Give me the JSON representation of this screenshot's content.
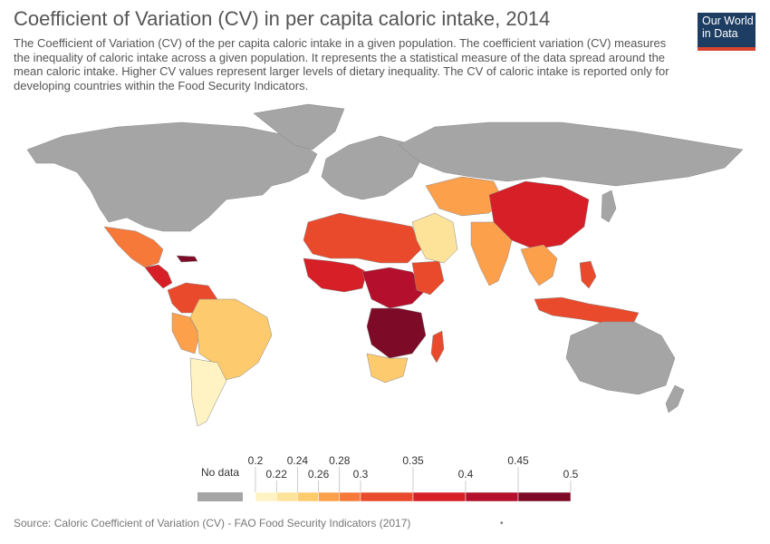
{
  "header": {
    "title": "Coefficient of Variation (CV) in per capita caloric intake, 2014",
    "subtitle": "The Coefficient of Variation (CV) of the per capita caloric intake in a given population. The coefficient variation (CV) measures the inequality of caloric intake across a given population. It represents the a statistical measure of the data spread around the mean caloric intake. Higher CV values represent larger levels of dietary inequality. The CV of caloric intake is reported only for developing countries within the Food Security Indicators."
  },
  "logo": {
    "line1": "Our World",
    "line2": "in Data"
  },
  "legend": {
    "no_data_label": "No data",
    "no_data_color": "#a5a5a5",
    "bins": [
      {
        "min": 0.2,
        "max": 0.22,
        "color": "#fff3c4"
      },
      {
        "min": 0.22,
        "max": 0.24,
        "color": "#fde39a"
      },
      {
        "min": 0.24,
        "max": 0.26,
        "color": "#fdca6d"
      },
      {
        "min": 0.26,
        "max": 0.28,
        "color": "#fca04c"
      },
      {
        "min": 0.28,
        "max": 0.3,
        "color": "#f6793a"
      },
      {
        "min": 0.3,
        "max": 0.35,
        "color": "#ea4a2c"
      },
      {
        "min": 0.35,
        "max": 0.4,
        "color": "#d61f26"
      },
      {
        "min": 0.4,
        "max": 0.45,
        "color": "#b40f2c"
      },
      {
        "min": 0.45,
        "max": 0.5,
        "color": "#7d0a26"
      }
    ],
    "ticks": [
      "0.2",
      "0.22",
      "0.24",
      "0.26",
      "0.28",
      "0.3",
      "0.35",
      "0.4",
      "0.45",
      "0.5"
    ]
  },
  "map": {
    "ocean_color": "#ffffff",
    "nodata_color": "#a5a5a5",
    "border_color": "#888888"
  },
  "source": "Source: Caloric Coefficient of Variation (CV) - FAO Food Security Indicators (2017)",
  "footer_dot": "•"
}
